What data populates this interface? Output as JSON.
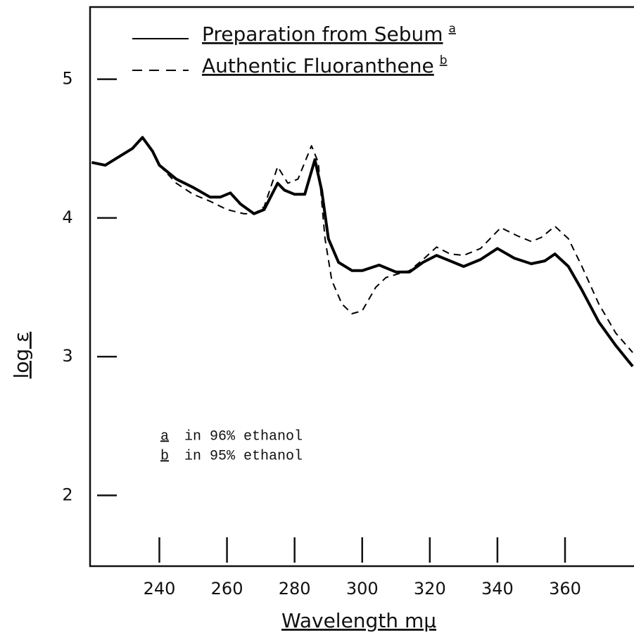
{
  "chart_data": {
    "type": "line",
    "xlabel": "Wavelength mμ",
    "ylabel": "log ε",
    "xlim": [
      219.5,
      380.4
    ],
    "ylim": [
      1.49,
      5.52
    ],
    "xticks": [
      240,
      260,
      280,
      300,
      320,
      340,
      360
    ],
    "yticks": [
      2,
      3,
      4,
      5
    ],
    "series": [
      {
        "name": "Preparation from Sebum",
        "note": "a",
        "color": "#000",
        "style": "solid",
        "x": [
          220,
          224,
          228,
          232,
          235,
          238,
          240,
          245,
          250,
          255,
          258,
          261,
          264,
          268,
          271,
          275,
          277,
          280,
          283,
          286,
          288,
          290,
          293,
          297,
          300,
          305,
          310,
          314,
          318,
          322,
          326,
          330,
          335,
          340,
          345,
          350,
          354,
          357,
          361,
          365,
          370,
          375,
          380
        ],
        "values": [
          4.4,
          4.38,
          4.44,
          4.5,
          4.58,
          4.48,
          4.38,
          4.28,
          4.22,
          4.15,
          4.15,
          4.18,
          4.1,
          4.03,
          4.06,
          4.25,
          4.2,
          4.17,
          4.17,
          4.42,
          4.2,
          3.85,
          3.68,
          3.62,
          3.62,
          3.66,
          3.61,
          3.61,
          3.68,
          3.73,
          3.69,
          3.65,
          3.7,
          3.78,
          3.71,
          3.67,
          3.69,
          3.74,
          3.65,
          3.48,
          3.25,
          3.08,
          2.93
        ]
      },
      {
        "name": "Authentic Fluoranthene",
        "note": "b",
        "color": "#000",
        "style": "dashed",
        "x": [
          240,
          245,
          250,
          255,
          260,
          265,
          268,
          271,
          275,
          278,
          281,
          285,
          287,
          289,
          291,
          294,
          297,
          300,
          304,
          307,
          311,
          314,
          318,
          322,
          326,
          330,
          335,
          341,
          346,
          350,
          353,
          357,
          361,
          365,
          370,
          375,
          380
        ],
        "values": [
          4.38,
          4.25,
          4.17,
          4.12,
          4.06,
          4.03,
          4.03,
          4.08,
          4.37,
          4.25,
          4.28,
          4.52,
          4.4,
          3.85,
          3.55,
          3.38,
          3.31,
          3.33,
          3.5,
          3.57,
          3.6,
          3.62,
          3.7,
          3.79,
          3.74,
          3.73,
          3.78,
          3.93,
          3.87,
          3.83,
          3.86,
          3.94,
          3.85,
          3.65,
          3.38,
          3.17,
          3.03
        ]
      }
    ],
    "notes": [
      {
        "marker": "a",
        "text": "in 96% ethanol"
      },
      {
        "marker": "b",
        "text": "in 95% ethanol"
      }
    ]
  }
}
